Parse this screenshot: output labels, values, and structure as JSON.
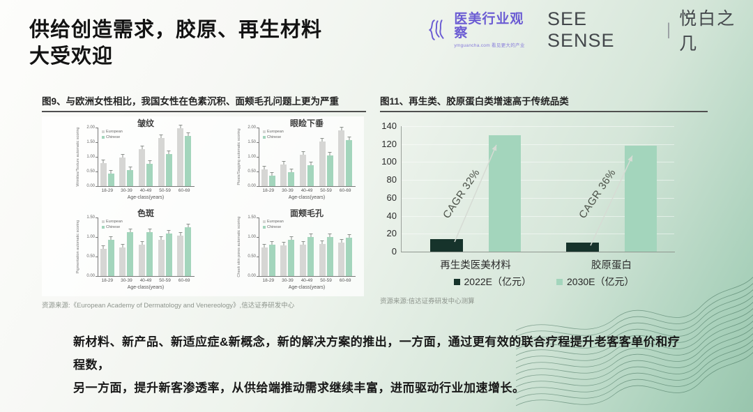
{
  "slide": {
    "title_line1": "供给创造需求，胶原、再生材料",
    "title_line2": "大受欢迎",
    "body_line1": "新材料、新产品、新适应症&新概念，新的解决方案的推出，一方面，通过更有效的联合疗程提升老客客单价和疗程数，",
    "body_line2": "另一方面，提升新客渗透率，从供给端推动需求继续丰富，进而驱动行业加速增长。"
  },
  "header_logo": {
    "brand": "医美行业观察",
    "tagline": "ymguancha.com 看见更大的产业",
    "series": "SEE SENSE",
    "divider": "|",
    "episode": "悦白之几",
    "brand_color": "#6b5cd3"
  },
  "figure9": {
    "title": "图9、与欧洲女性相比，我国女性在色素沉积、面颊毛孔问题上更为严重",
    "source": "资源来源:《European Academy of Dermatology and Venereology》,信达证券研发中心"
  },
  "figure11": {
    "title": "图11、再生类、胶原蛋白类增速高于传统品类",
    "source": "资源来源:信达证券研发中心测算"
  },
  "colors": {
    "european_bar": "#d6d6d4",
    "chinese_bar": "#a3d5bc",
    "bar_2022": "#16332b",
    "bar_2030": "#a3d5bc",
    "arrow": "#d6dbd4"
  },
  "chart_data": [
    {
      "id": "fig9-wrinkles",
      "type": "bar",
      "title": "皱纹",
      "ylabel": "Wrinkles/Texture automatic scoring",
      "xlabel": "Age-class(years)",
      "categories": [
        "18-29",
        "30-39",
        "40-49",
        "50-59",
        "60-69"
      ],
      "series": [
        {
          "name": "European",
          "values": [
            0.78,
            0.98,
            1.27,
            1.65,
            1.97
          ]
        },
        {
          "name": "Chinese",
          "values": [
            0.42,
            0.55,
            0.77,
            1.1,
            1.72
          ]
        }
      ],
      "ylim": [
        0,
        2.0
      ],
      "yticks": [
        "0.00",
        "0.50",
        "1.00",
        "1.50",
        "2.00"
      ],
      "legend_position": "top-left"
    },
    {
      "id": "fig9-ptosis",
      "type": "bar",
      "title": "眼睑下垂",
      "ylabel": "Ptosis/Sagging automatic scoring",
      "xlabel": "Age-class(years)",
      "categories": [
        "18-29",
        "30-39",
        "40-49",
        "50-59",
        "60-69"
      ],
      "series": [
        {
          "name": "European",
          "values": [
            0.58,
            0.73,
            1.06,
            1.53,
            1.9
          ]
        },
        {
          "name": "Chinese",
          "values": [
            0.35,
            0.47,
            0.71,
            1.04,
            1.58
          ]
        }
      ],
      "ylim": [
        0,
        2.0
      ],
      "yticks": [
        "0.00",
        "0.50",
        "1.00",
        "1.50",
        "2.00"
      ],
      "legend_position": "top-left"
    },
    {
      "id": "fig9-pigmentation",
      "type": "bar",
      "title": "色斑",
      "ylabel": "Pigmentation automatic scoring",
      "xlabel": "Age-class(years)",
      "categories": [
        "18-29",
        "30-39",
        "40-49",
        "50-59",
        "60-69"
      ],
      "series": [
        {
          "name": "European",
          "values": [
            0.7,
            0.73,
            0.81,
            0.92,
            1.03
          ]
        },
        {
          "name": "Chinese",
          "values": [
            0.92,
            1.12,
            1.12,
            1.09,
            1.25
          ]
        }
      ],
      "ylim": [
        0,
        1.5
      ],
      "yticks": [
        "0.00",
        "0.50",
        "1.00",
        "1.50"
      ],
      "legend_position": "top-left"
    },
    {
      "id": "fig9-pores",
      "type": "bar",
      "title": "面颊毛孔",
      "ylabel": "Cheek skin pores automatic scoring",
      "xlabel": "Age-class(years)",
      "categories": [
        "18-29",
        "30-39",
        "40-49",
        "50-59",
        "60-69"
      ],
      "series": [
        {
          "name": "European",
          "values": [
            0.74,
            0.79,
            0.81,
            0.83,
            0.85
          ]
        },
        {
          "name": "Chinese",
          "values": [
            0.81,
            0.92,
            1.0,
            1.0,
            0.98
          ]
        }
      ],
      "ylim": [
        0,
        1.5
      ],
      "yticks": [
        "0.00",
        "0.50",
        "1.00",
        "1.50"
      ],
      "legend_position": "top-left"
    },
    {
      "id": "fig11-market",
      "type": "bar",
      "title": "图11、再生类、胶原蛋白类增速高于传统品类",
      "categories": [
        "再生类医美材料",
        "胶原蛋白"
      ],
      "series": [
        {
          "name": "2022E（亿元）",
          "values": [
            14,
            10
          ]
        },
        {
          "name": "2030E（亿元）",
          "values": [
            130,
            118
          ]
        }
      ],
      "ylim": [
        0,
        140
      ],
      "yticks": [
        0,
        20,
        40,
        60,
        80,
        100,
        120,
        140
      ],
      "annotations": [
        "CAGR 32%",
        "CAGR 36%"
      ],
      "legend_position": "bottom"
    }
  ]
}
